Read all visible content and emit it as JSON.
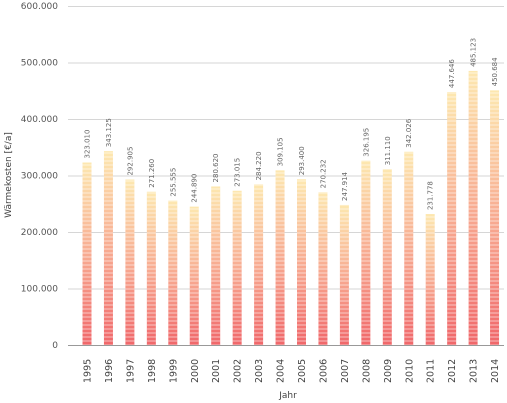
{
  "chart_data": {
    "type": "bar",
    "title": "",
    "xlabel": "Jahr",
    "ylabel": "Wärmekosten [€/a]",
    "ylim": [
      0,
      600000
    ],
    "y_ticks": [
      "0",
      "100.000",
      "200.000",
      "300.000",
      "400.000",
      "500.000",
      "600.000"
    ],
    "grid": true,
    "categories": [
      "1995",
      "1996",
      "1997",
      "1998",
      "1999",
      "2000",
      "2001",
      "2002",
      "2003",
      "2004",
      "2005",
      "2006",
      "2007",
      "2008",
      "2009",
      "2010",
      "2011",
      "2012",
      "2013",
      "2014"
    ],
    "values": [
      323010,
      343125,
      292905,
      271260,
      255555,
      244890,
      280620,
      273015,
      284220,
      309105,
      293400,
      270232,
      247914,
      326195,
      311110,
      342026,
      231778,
      447646,
      485123,
      450684
    ],
    "data_labels": [
      "323.010",
      "343.125",
      "292.905",
      "271.260",
      "255.555",
      "244.890",
      "280.620",
      "273.015",
      "284.220",
      "309.105",
      "293.400",
      "270.232",
      "247.914",
      "326.195",
      "311.110",
      "342.026",
      "231.778",
      "447.646",
      "485.123",
      "450.684"
    ],
    "colors": {
      "bar_bottom": "#f0676a",
      "bar_top": "#fde8b0",
      "grid": "#d6d6d6",
      "axis": "#999999"
    }
  }
}
